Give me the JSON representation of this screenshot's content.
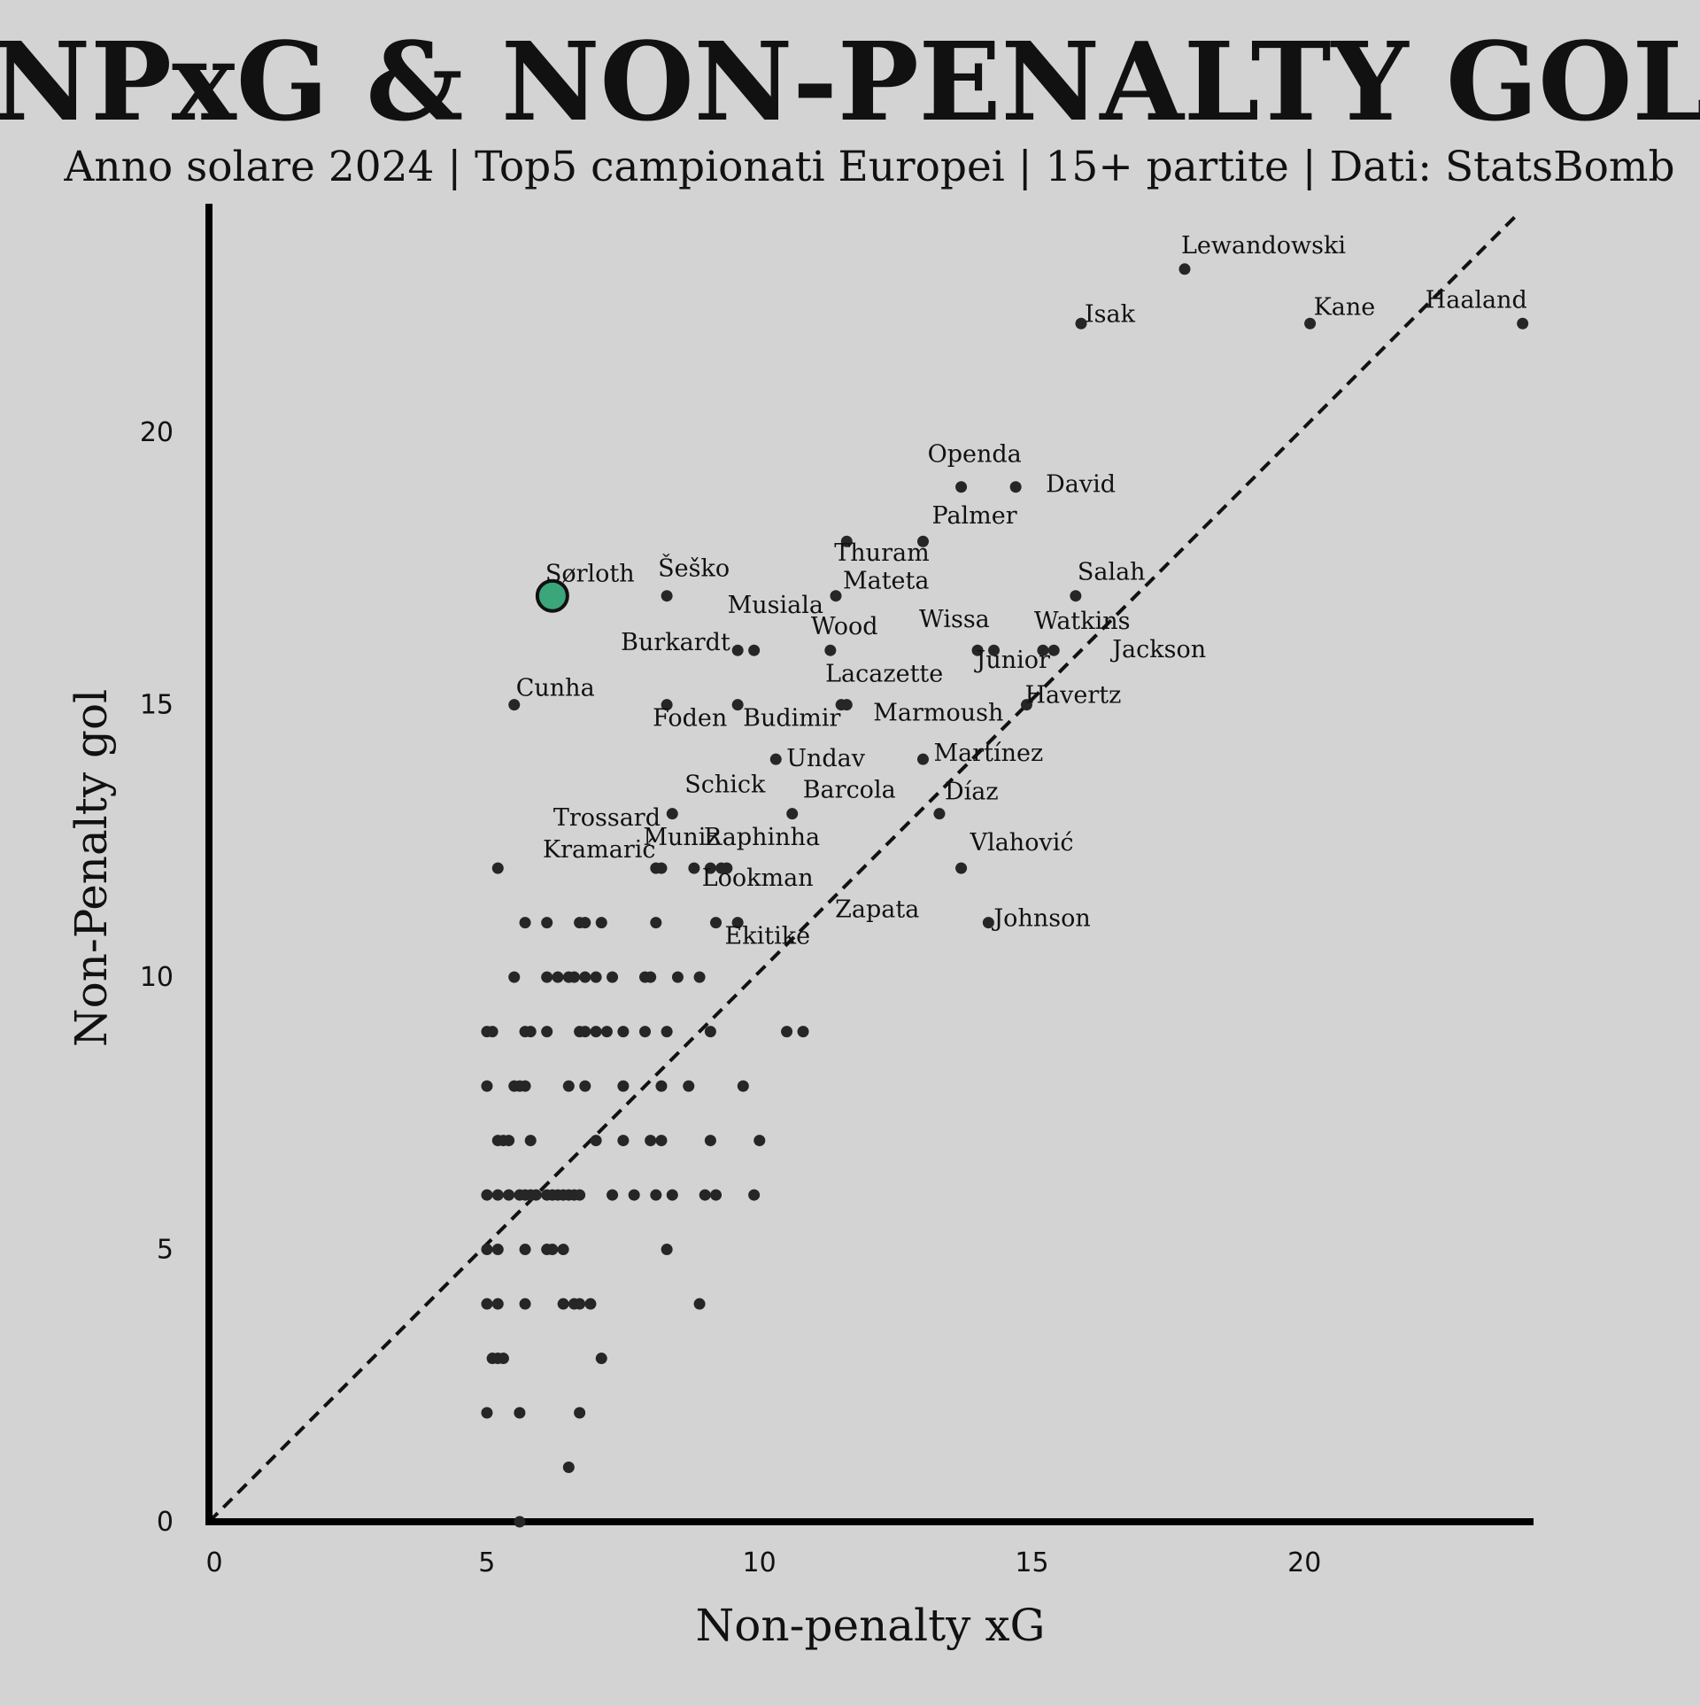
{
  "chart_data": {
    "type": "scatter",
    "title": "NPxG & NON-PENALTY GOL",
    "subtitle": "Anno solare 2024 | Top5 campionati Europei | 15+ partite | Dati: StatsBomb",
    "xlabel": "Non-penalty xG",
    "ylabel": "Non-Penalty gol",
    "xlim": [
      0,
      24.3
    ],
    "ylim": [
      0,
      24.2
    ],
    "xticks": [
      "0",
      "5",
      "10",
      "15",
      "20"
    ],
    "yticks": [
      "0",
      "5",
      "10",
      "15",
      "20"
    ],
    "grid": false,
    "reference_line": "y = x (dashed)",
    "highlight_color": "#3aa67a",
    "point_color": "#262626",
    "labeled_points": [
      {
        "name": "Lewandowski",
        "x": 17.9,
        "y": 23
      },
      {
        "name": "Isak",
        "x": 16.0,
        "y": 22
      },
      {
        "name": "Kane",
        "x": 20.2,
        "y": 22
      },
      {
        "name": "Haaland",
        "x": 24.1,
        "y": 22
      },
      {
        "name": "Openda",
        "x": 13.8,
        "y": 19
      },
      {
        "name": "David",
        "x": 14.8,
        "y": 19
      },
      {
        "name": "Palmer",
        "x": 13.1,
        "y": 18
      },
      {
        "name": "Thuram",
        "x": 11.7,
        "y": 18
      },
      {
        "name": "Sørloth",
        "x": 6.3,
        "y": 17,
        "highlight": true
      },
      {
        "name": "Šeško",
        "x": 8.4,
        "y": 17
      },
      {
        "name": "Salah",
        "x": 15.9,
        "y": 17
      },
      {
        "name": "Mateta",
        "x": 11.5,
        "y": 17
      },
      {
        "name": "Musiala",
        "x": 10.0,
        "y": 16
      },
      {
        "name": "Burkardt",
        "x": 9.7,
        "y": 16
      },
      {
        "name": "Wood",
        "x": 11.4,
        "y": 16
      },
      {
        "name": "Wissa",
        "x": 14.1,
        "y": 16
      },
      {
        "name": "Junior",
        "x": 14.4,
        "y": 16
      },
      {
        "name": "Watkins",
        "x": 15.3,
        "y": 16
      },
      {
        "name": "Jackson",
        "x": 15.5,
        "y": 16
      },
      {
        "name": "Lacazette",
        "x": 11.6,
        "y": 15
      },
      {
        "name": "Cunha",
        "x": 5.6,
        "y": 15
      },
      {
        "name": "Foden",
        "x": 8.4,
        "y": 15
      },
      {
        "name": "Budimir",
        "x": 9.7,
        "y": 15
      },
      {
        "name": "Marmoush",
        "x": 11.7,
        "y": 15
      },
      {
        "name": "Havertz",
        "x": 15.0,
        "y": 15
      },
      {
        "name": "Undav",
        "x": 10.4,
        "y": 14
      },
      {
        "name": "Martínez",
        "x": 13.1,
        "y": 14
      },
      {
        "name": "Schick",
        "x": 8.5,
        "y": 13
      },
      {
        "name": "Barcola",
        "x": 10.7,
        "y": 13
      },
      {
        "name": "Díaz",
        "x": 13.4,
        "y": 13
      },
      {
        "name": "Trossard",
        "x": 8.2,
        "y": 12
      },
      {
        "name": "Kramarić",
        "x": 8.3,
        "y": 12
      },
      {
        "name": "Muniz",
        "x": 9.2,
        "y": 12
      },
      {
        "name": "Raphinha",
        "x": 9.5,
        "y": 12
      },
      {
        "name": "Vlahović",
        "x": 13.8,
        "y": 12
      },
      {
        "name": "Lookman",
        "x": 9.4,
        "y": 12
      },
      {
        "name": "Zapata",
        "x": 9.7,
        "y": 11
      },
      {
        "name": "Johnson",
        "x": 14.3,
        "y": 11
      },
      {
        "name": "Ekitike",
        "x": 9.3,
        "y": 11
      }
    ],
    "other_points": [
      [
        5.3,
        12
      ],
      [
        8.9,
        12
      ],
      [
        5.8,
        11
      ],
      [
        6.2,
        11
      ],
      [
        6.8,
        11
      ],
      [
        6.9,
        11
      ],
      [
        7.2,
        11
      ],
      [
        8.2,
        11
      ],
      [
        5.6,
        10
      ],
      [
        6.2,
        10
      ],
      [
        6.4,
        10
      ],
      [
        6.6,
        10
      ],
      [
        6.7,
        10
      ],
      [
        6.9,
        10
      ],
      [
        7.1,
        10
      ],
      [
        7.4,
        10
      ],
      [
        8.0,
        10
      ],
      [
        8.1,
        10
      ],
      [
        8.6,
        10
      ],
      [
        9.0,
        10
      ],
      [
        5.1,
        9
      ],
      [
        5.2,
        9
      ],
      [
        5.8,
        9
      ],
      [
        5.9,
        9
      ],
      [
        6.2,
        9
      ],
      [
        6.8,
        9
      ],
      [
        6.9,
        9
      ],
      [
        7.1,
        9
      ],
      [
        7.3,
        9
      ],
      [
        7.6,
        9
      ],
      [
        8.0,
        9
      ],
      [
        8.4,
        9
      ],
      [
        9.2,
        9
      ],
      [
        10.6,
        9
      ],
      [
        10.9,
        9
      ],
      [
        5.1,
        8
      ],
      [
        5.6,
        8
      ],
      [
        5.7,
        8
      ],
      [
        5.8,
        8
      ],
      [
        6.6,
        8
      ],
      [
        6.9,
        8
      ],
      [
        7.6,
        8
      ],
      [
        8.3,
        8
      ],
      [
        8.8,
        8
      ],
      [
        9.8,
        8
      ],
      [
        5.3,
        7
      ],
      [
        5.4,
        7
      ],
      [
        5.5,
        7
      ],
      [
        5.9,
        7
      ],
      [
        7.1,
        7
      ],
      [
        7.6,
        7
      ],
      [
        8.1,
        7
      ],
      [
        8.3,
        7
      ],
      [
        9.2,
        7
      ],
      [
        10.1,
        7
      ],
      [
        5.1,
        6
      ],
      [
        5.3,
        6
      ],
      [
        5.5,
        6
      ],
      [
        5.7,
        6
      ],
      [
        5.8,
        6
      ],
      [
        5.9,
        6
      ],
      [
        6.0,
        6
      ],
      [
        6.2,
        6
      ],
      [
        6.3,
        6
      ],
      [
        6.4,
        6
      ],
      [
        6.5,
        6
      ],
      [
        6.6,
        6
      ],
      [
        6.7,
        6
      ],
      [
        6.8,
        6
      ],
      [
        7.4,
        6
      ],
      [
        7.8,
        6
      ],
      [
        8.2,
        6
      ],
      [
        8.5,
        6
      ],
      [
        9.1,
        6
      ],
      [
        9.3,
        6
      ],
      [
        10.0,
        6
      ],
      [
        5.1,
        5
      ],
      [
        5.3,
        5
      ],
      [
        5.8,
        5
      ],
      [
        6.2,
        5
      ],
      [
        6.3,
        5
      ],
      [
        6.5,
        5
      ],
      [
        8.4,
        5
      ],
      [
        5.1,
        4
      ],
      [
        5.3,
        4
      ],
      [
        5.8,
        4
      ],
      [
        6.5,
        4
      ],
      [
        6.7,
        4
      ],
      [
        6.8,
        4
      ],
      [
        7.0,
        4
      ],
      [
        9.0,
        4
      ],
      [
        5.2,
        3
      ],
      [
        5.3,
        3
      ],
      [
        5.4,
        3
      ],
      [
        7.2,
        3
      ],
      [
        5.1,
        2
      ],
      [
        5.7,
        2
      ],
      [
        6.8,
        2
      ],
      [
        6.6,
        1
      ],
      [
        5.7,
        0
      ]
    ]
  }
}
